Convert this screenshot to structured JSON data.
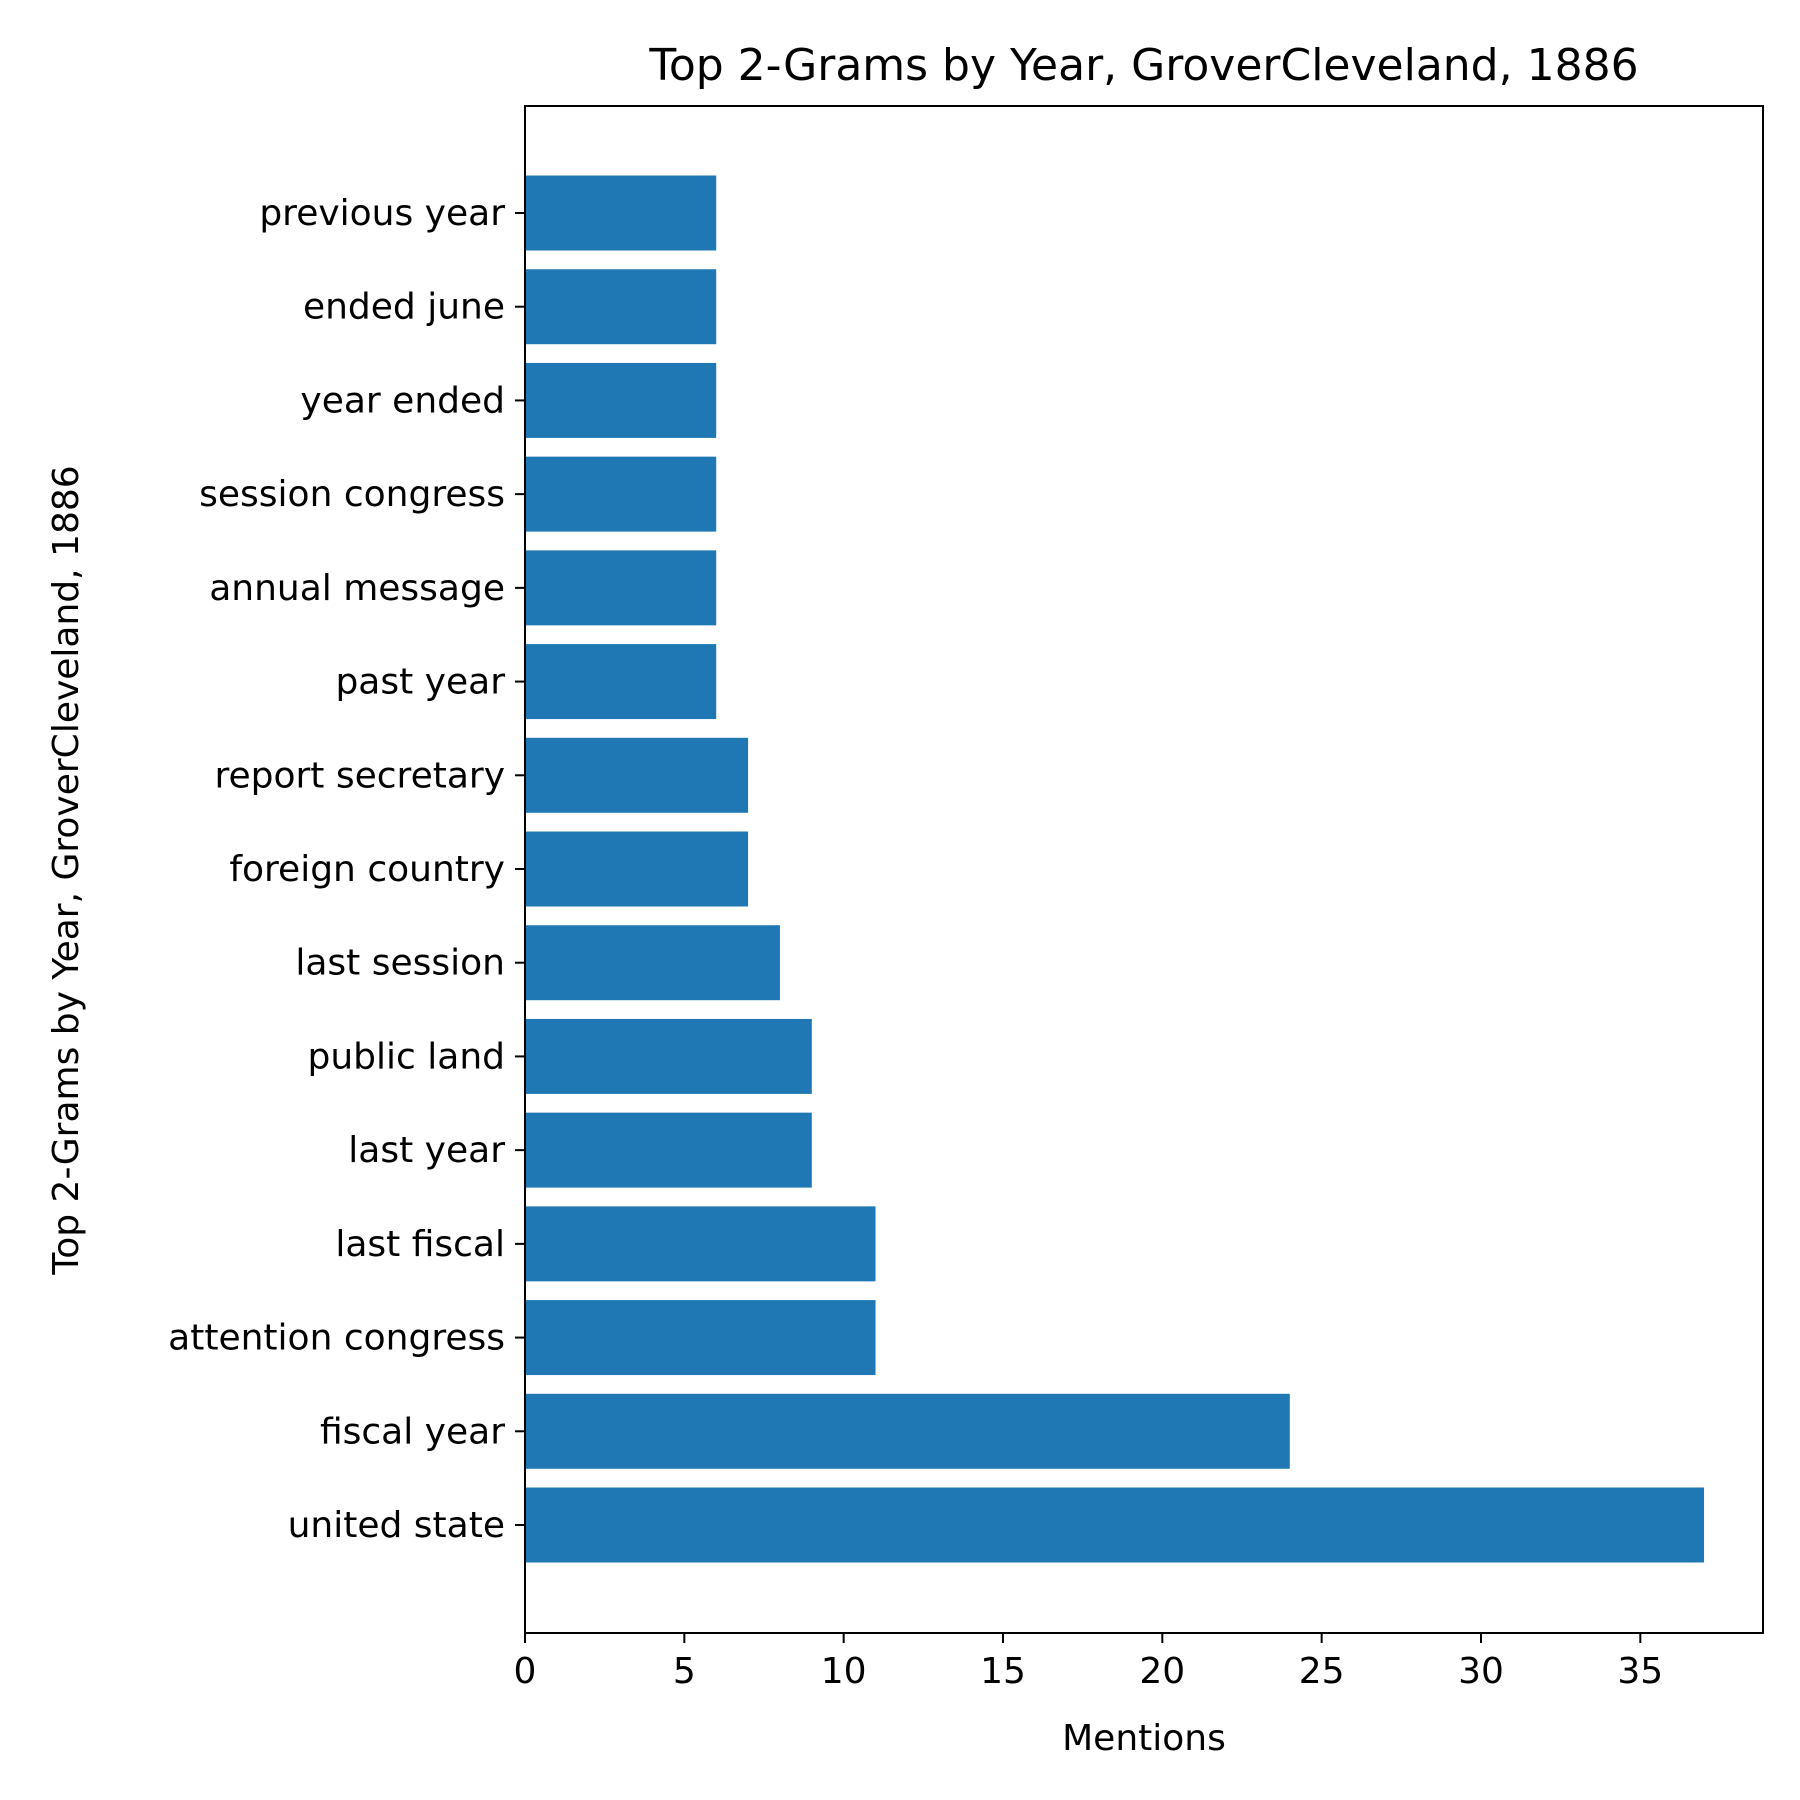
{
  "chart_data": {
    "type": "bar",
    "orientation": "horizontal",
    "title": "Top 2-Grams by Year, GroverCleveland, 1886",
    "xlabel": "Mentions",
    "ylabel": "Top 2-Grams by Year, GroverCleveland, 1886",
    "xlim": [
      0,
      38.85
    ],
    "xticks": [
      0,
      5,
      10,
      15,
      20,
      25,
      30,
      35
    ],
    "grid": false,
    "bar_color": "#1f77b4",
    "categories": [
      "united state",
      "fiscal year",
      "attention congress",
      "last fiscal",
      "last year",
      "public land",
      "last session",
      "foreign country",
      "report secretary",
      "past year",
      "annual message",
      "session congress",
      "year ended",
      "ended june",
      "previous year"
    ],
    "values": [
      37,
      24,
      11,
      11,
      9,
      9,
      8,
      7,
      7,
      6,
      6,
      6,
      6,
      6,
      6
    ]
  }
}
